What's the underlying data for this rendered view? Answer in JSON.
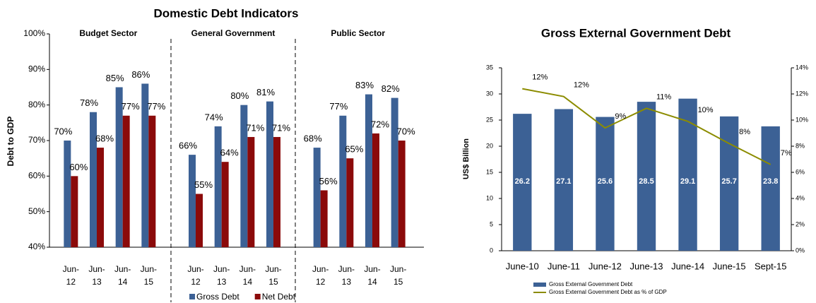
{
  "chart_data": [
    {
      "type": "grouped_bar",
      "title": "Domestic Debt Indicators",
      "y_label": "Debt  to GDP",
      "groups": [
        "Budget Sector",
        "General Government",
        "Public Sector"
      ],
      "categories": [
        "Jun-12",
        "Jun-13",
        "Jun-14",
        "Jun-15",
        "Jun-12",
        "Jun-13",
        "Jun-14",
        "Jun-15",
        "Jun-12",
        "Jun-13",
        "Jun-14",
        "Jun-15"
      ],
      "series": [
        {
          "name": "Gross Debt",
          "color": "#3c6195",
          "values": [
            70,
            78,
            85,
            86,
            66,
            74,
            80,
            81,
            68,
            77,
            83,
            82
          ],
          "value_labels": [
            "70%",
            "78%",
            "85%",
            "86%",
            "66%",
            "74%",
            "80%",
            "81%",
            "68%",
            "77%",
            "83%",
            "82%"
          ]
        },
        {
          "name": "Net Debt",
          "color": "#8b0a0a",
          "values": [
            60,
            68,
            77,
            77,
            55,
            64,
            71,
            71,
            56,
            65,
            72,
            70
          ],
          "value_labels": [
            "60%",
            "68%",
            "77%",
            "77%",
            "55%",
            "64%",
            "71%",
            "71%",
            "56%",
            "65%",
            "72%",
            "70%"
          ]
        }
      ],
      "ylim": [
        40,
        100
      ],
      "yticks": [
        {
          "value": 40,
          "label": "40%"
        },
        {
          "value": 50,
          "label": "50%"
        },
        {
          "value": 60,
          "label": "60%"
        },
        {
          "value": 70,
          "label": "70%"
        },
        {
          "value": 80,
          "label": "80%"
        },
        {
          "value": 90,
          "label": "90%"
        },
        {
          "value": 100,
          "label": "100%"
        }
      ],
      "legend": "bottom"
    },
    {
      "type": "combo",
      "title": "Gross External Government Debt",
      "y_label": "US$ Billion",
      "categories": [
        "June-10",
        "June-11",
        "June-12",
        "June-13",
        "June-14",
        "June-15",
        "Sept-15"
      ],
      "series": [
        {
          "name": "Gross  External Government Debt",
          "type": "bar",
          "color": "#3c6195",
          "values": [
            26.2,
            27.1,
            25.6,
            28.5,
            29.1,
            25.7,
            23.8
          ]
        },
        {
          "name": "Gross  External Government Debt as % of GDP",
          "type": "line",
          "axis": "y2",
          "color": "#8c8c00",
          "values": [
            12.4,
            11.8,
            9.4,
            10.9,
            9.9,
            8.2,
            6.6
          ],
          "value_labels": [
            "12%",
            "12%",
            "9%",
            "11%",
            "10%",
            "8%",
            "7%"
          ]
        }
      ],
      "ylim": [
        0,
        35
      ],
      "yticks": [
        0,
        5,
        10,
        15,
        20,
        25,
        30,
        35
      ],
      "y2lim": [
        0,
        14
      ],
      "y2ticks": [
        {
          "value": 0,
          "label": "0%"
        },
        {
          "value": 2,
          "label": "2%"
        },
        {
          "value": 4,
          "label": "4%"
        },
        {
          "value": 6,
          "label": "6%"
        },
        {
          "value": 8,
          "label": "8%"
        },
        {
          "value": 10,
          "label": "10%"
        },
        {
          "value": 12,
          "label": "12%"
        },
        {
          "value": 14,
          "label": "14%"
        }
      ],
      "legend": "bottom"
    }
  ]
}
